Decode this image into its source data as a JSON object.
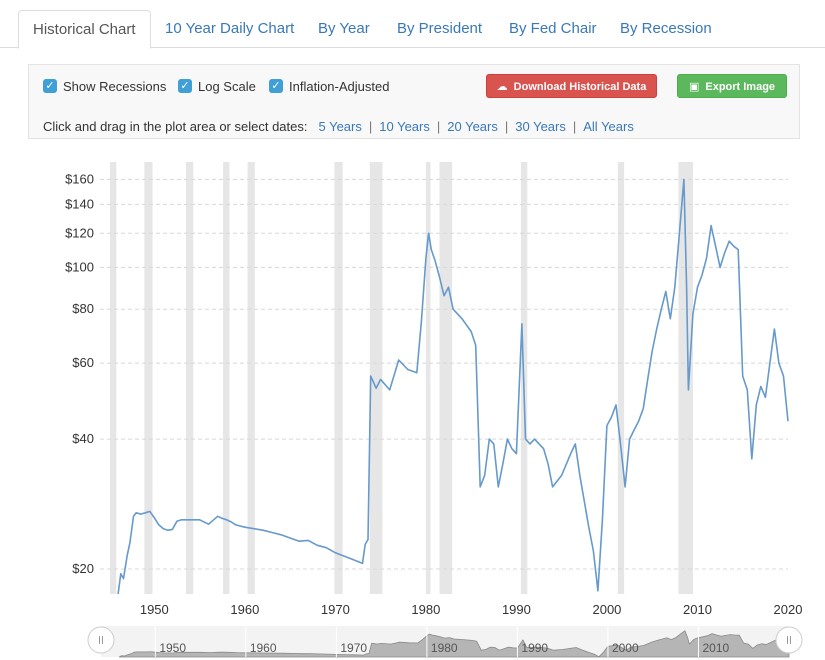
{
  "tabs": [
    {
      "label": "Historical Chart",
      "active": true
    },
    {
      "label": "10 Year Daily Chart"
    },
    {
      "label": "By Year"
    },
    {
      "label": "By President"
    },
    {
      "label": "By Fed Chair"
    },
    {
      "label": "By Recession"
    }
  ],
  "controls": {
    "show_recessions": "Show Recessions",
    "log_scale": "Log Scale",
    "inflation_adjusted": "Inflation-Adjusted",
    "download_label": "Download Historical Data",
    "export_label": "Export Image",
    "date_prompt": "Click and drag in the plot area or select dates:",
    "date_links": [
      "5 Years",
      "10 Years",
      "20 Years",
      "30 Years",
      "All Years"
    ]
  },
  "colors": {
    "line": "#6699cc",
    "recession": "#e6e6e6",
    "download_button": "#d9534f",
    "export_button": "#5cb85c",
    "accent": "#3a78b8"
  },
  "icons": {
    "download": "cloud-download-icon",
    "export": "image-icon",
    "checkbox": "check-icon"
  },
  "chart_data": {
    "type": "line",
    "title": "",
    "xlabel": "",
    "ylabel": "",
    "y_scale": "log",
    "grid": "horizontal dashed",
    "xlim": [
      1944,
      2020
    ],
    "ylim": [
      17.5,
      170
    ],
    "y_ticks": [
      20,
      40,
      60,
      80,
      100,
      120,
      140,
      160
    ],
    "y_tick_labels": [
      "$20",
      "$40",
      "$60",
      "$80",
      "$100",
      "$120",
      "$140",
      "$160"
    ],
    "x_ticks": [
      1950,
      1960,
      1970,
      1980,
      1990,
      2000,
      2010,
      2020
    ],
    "x_tick_labels": [
      "1950",
      "1960",
      "1970",
      "1980",
      "1990",
      "2000",
      "2010",
      "2020"
    ],
    "recessions": [
      [
        1945.1,
        1945.8
      ],
      [
        1948.9,
        1949.8
      ],
      [
        1953.5,
        1954.3
      ],
      [
        1957.6,
        1958.3
      ],
      [
        1960.3,
        1961.1
      ],
      [
        1969.9,
        1970.8
      ],
      [
        1973.8,
        1975.2
      ],
      [
        1980.0,
        1980.5
      ],
      [
        1981.5,
        1982.9
      ],
      [
        1990.5,
        1991.2
      ],
      [
        2001.2,
        2001.9
      ],
      [
        2007.9,
        2009.5
      ]
    ],
    "series": [
      {
        "values": [
          [
            1946.0,
            17.5
          ],
          [
            1946.3,
            19.5
          ],
          [
            1946.6,
            19.0
          ],
          [
            1947.0,
            21.5
          ],
          [
            1947.3,
            23.0
          ],
          [
            1947.7,
            26.5
          ],
          [
            1948.0,
            27.0
          ],
          [
            1948.5,
            26.8
          ],
          [
            1949.0,
            27.0
          ],
          [
            1949.5,
            27.2
          ],
          [
            1950.0,
            26.3
          ],
          [
            1950.5,
            25.3
          ],
          [
            1951.0,
            24.8
          ],
          [
            1951.5,
            24.6
          ],
          [
            1952.0,
            24.7
          ],
          [
            1952.5,
            25.8
          ],
          [
            1953.0,
            26.0
          ],
          [
            1954.0,
            26.0
          ],
          [
            1955.0,
            26.0
          ],
          [
            1956.0,
            25.4
          ],
          [
            1957.0,
            26.5
          ],
          [
            1957.5,
            26.2
          ],
          [
            1958.0,
            26.0
          ],
          [
            1958.5,
            25.7
          ],
          [
            1959.0,
            25.3
          ],
          [
            1960.0,
            25.0
          ],
          [
            1961.0,
            24.8
          ],
          [
            1962.0,
            24.6
          ],
          [
            1963.0,
            24.3
          ],
          [
            1964.0,
            24.0
          ],
          [
            1965.0,
            23.6
          ],
          [
            1966.0,
            23.2
          ],
          [
            1967.0,
            23.3
          ],
          [
            1968.0,
            22.7
          ],
          [
            1969.0,
            22.4
          ],
          [
            1970.0,
            21.8
          ],
          [
            1971.0,
            21.4
          ],
          [
            1972.0,
            21.0
          ],
          [
            1973.0,
            20.6
          ],
          [
            1973.3,
            22.8
          ],
          [
            1973.6,
            23.4
          ],
          [
            1973.9,
            56.0
          ],
          [
            1974.5,
            52.5
          ],
          [
            1975.0,
            55.0
          ],
          [
            1976.0,
            52.0
          ],
          [
            1977.0,
            61.0
          ],
          [
            1978.0,
            58.0
          ],
          [
            1979.0,
            57.0
          ],
          [
            1979.5,
            75.0
          ],
          [
            1980.0,
            105.0
          ],
          [
            1980.3,
            120.0
          ],
          [
            1980.6,
            110.0
          ],
          [
            1981.0,
            104.0
          ],
          [
            1981.5,
            95.0
          ],
          [
            1982.0,
            86.0
          ],
          [
            1982.5,
            90.0
          ],
          [
            1983.0,
            80.0
          ],
          [
            1984.0,
            76.0
          ],
          [
            1985.0,
            71.0
          ],
          [
            1985.5,
            66.0
          ],
          [
            1986.0,
            31.0
          ],
          [
            1986.5,
            33.0
          ],
          [
            1987.0,
            40.0
          ],
          [
            1987.5,
            39.0
          ],
          [
            1988.0,
            31.0
          ],
          [
            1988.5,
            35.0
          ],
          [
            1989.0,
            40.0
          ],
          [
            1989.5,
            38.0
          ],
          [
            1990.0,
            37.0
          ],
          [
            1990.6,
            74.0
          ],
          [
            1991.0,
            40.0
          ],
          [
            1991.5,
            39.0
          ],
          [
            1992.0,
            40.0
          ],
          [
            1993.0,
            38.0
          ],
          [
            1993.5,
            35.0
          ],
          [
            1994.0,
            31.0
          ],
          [
            1995.0,
            33.0
          ],
          [
            1996.0,
            37.0
          ],
          [
            1996.5,
            39.0
          ],
          [
            1997.0,
            33.0
          ],
          [
            1998.0,
            25.0
          ],
          [
            1998.5,
            22.0
          ],
          [
            1999.0,
            17.8
          ],
          [
            1999.5,
            26.0
          ],
          [
            2000.0,
            43.0
          ],
          [
            2000.5,
            45.0
          ],
          [
            2001.0,
            48.0
          ],
          [
            2001.5,
            39.0
          ],
          [
            2002.0,
            31.0
          ],
          [
            2002.5,
            40.0
          ],
          [
            2003.0,
            42.0
          ],
          [
            2003.5,
            44.0
          ],
          [
            2004.0,
            47.0
          ],
          [
            2004.5,
            55.0
          ],
          [
            2005.0,
            64.0
          ],
          [
            2005.5,
            72.0
          ],
          [
            2006.0,
            80.0
          ],
          [
            2006.5,
            88.0
          ],
          [
            2007.0,
            76.0
          ],
          [
            2007.5,
            90.0
          ],
          [
            2008.0,
            120.0
          ],
          [
            2008.5,
            160.0
          ],
          [
            2008.8,
            90.0
          ],
          [
            2009.0,
            52.0
          ],
          [
            2009.5,
            78.0
          ],
          [
            2010.0,
            90.0
          ],
          [
            2010.5,
            96.0
          ],
          [
            2011.0,
            105.0
          ],
          [
            2011.5,
            125.0
          ],
          [
            2012.0,
            112.0
          ],
          [
            2012.5,
            100.0
          ],
          [
            2013.0,
            108.0
          ],
          [
            2013.5,
            115.0
          ],
          [
            2014.0,
            112.0
          ],
          [
            2014.5,
            110.0
          ],
          [
            2015.0,
            56.0
          ],
          [
            2015.5,
            52.0
          ],
          [
            2016.0,
            36.0
          ],
          [
            2016.5,
            48.0
          ],
          [
            2017.0,
            53.0
          ],
          [
            2017.5,
            50.0
          ],
          [
            2018.0,
            60.0
          ],
          [
            2018.5,
            72.0
          ],
          [
            2019.0,
            60.0
          ],
          [
            2019.5,
            56.0
          ],
          [
            2020.0,
            44.0
          ]
        ]
      }
    ],
    "navigator_labels": [
      "1950",
      "1960",
      "1970",
      "1980",
      "1990",
      "2000",
      "2010"
    ]
  }
}
